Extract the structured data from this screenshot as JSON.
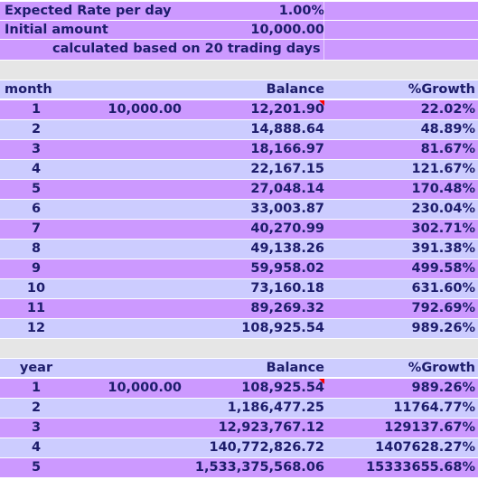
{
  "header": {
    "rate_label": "Expected Rate per day",
    "rate_value": "1.00%",
    "initial_label": "Initial amount",
    "initial_value": "10,000.00",
    "note": "calculated based on 20 trading days"
  },
  "monthly": {
    "col_month": "month",
    "col_balance": "Balance",
    "col_growth": "%Growth",
    "first_initial": "10,000.00",
    "rows": [
      {
        "period": "1",
        "balance": "12,201.90",
        "growth": "22.02%"
      },
      {
        "period": "2",
        "balance": "14,888.64",
        "growth": "48.89%"
      },
      {
        "period": "3",
        "balance": "18,166.97",
        "growth": "81.67%"
      },
      {
        "period": "4",
        "balance": "22,167.15",
        "growth": "121.67%"
      },
      {
        "period": "5",
        "balance": "27,048.14",
        "growth": "170.48%"
      },
      {
        "period": "6",
        "balance": "33,003.87",
        "growth": "230.04%"
      },
      {
        "period": "7",
        "balance": "40,270.99",
        "growth": "302.71%"
      },
      {
        "period": "8",
        "balance": "49,138.26",
        "growth": "391.38%"
      },
      {
        "period": "9",
        "balance": "59,958.02",
        "growth": "499.58%"
      },
      {
        "period": "10",
        "balance": "73,160.18",
        "growth": "631.60%"
      },
      {
        "period": "11",
        "balance": "89,269.32",
        "growth": "792.69%"
      },
      {
        "period": "12",
        "balance": "108,925.54",
        "growth": "989.26%"
      }
    ]
  },
  "yearly": {
    "col_year": "year",
    "col_balance": "Balance",
    "col_growth": "%Growth",
    "first_initial": "10,000.00",
    "rows": [
      {
        "period": "1",
        "balance": "108,925.54",
        "growth": "989.26%"
      },
      {
        "period": "2",
        "balance": "1,186,477.25",
        "growth": "11764.77%"
      },
      {
        "period": "3",
        "balance": "12,923,767.12",
        "growth": "129137.67%"
      },
      {
        "period": "4",
        "balance": "140,772,826.72",
        "growth": "1407628.27%"
      },
      {
        "period": "5",
        "balance": "1,533,375,568.06",
        "growth": "15333655.68%"
      }
    ]
  },
  "colors": {
    "purple": "#cc99ff",
    "light": "#ccccff",
    "gray": "#e6e6e6",
    "text": "#1d1d6b",
    "comment_marker": "#ff0000"
  }
}
